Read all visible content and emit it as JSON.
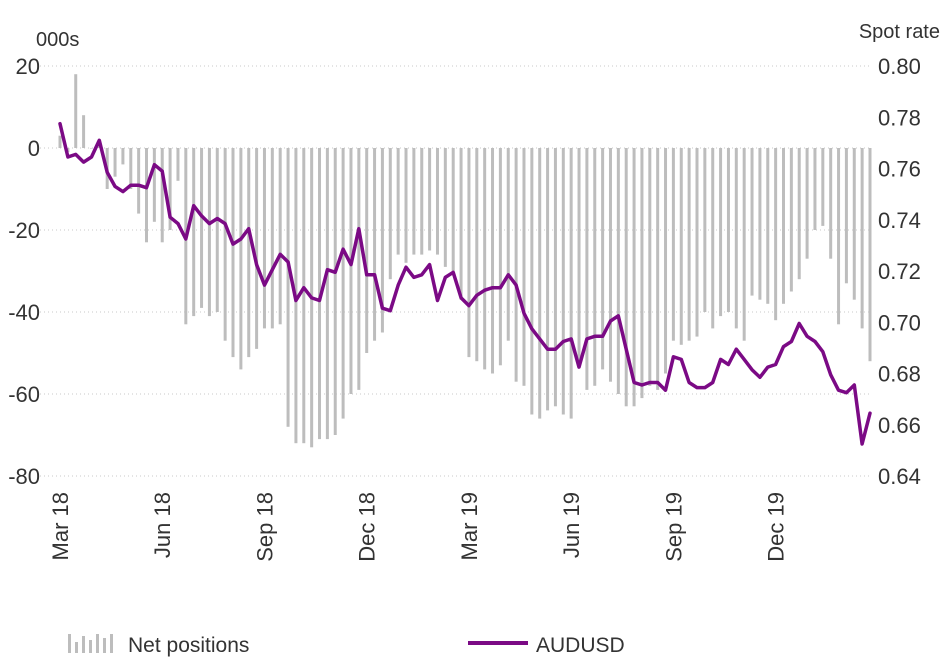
{
  "chart_data": {
    "type": "bar+line",
    "left_axis": {
      "unit": "000s",
      "ylim": [
        -80,
        20
      ],
      "ticks": [
        "20",
        "0",
        "-20",
        "-40",
        "-60",
        "-80"
      ]
    },
    "right_axis": {
      "unit": "Spot rate",
      "ylim": [
        0.64,
        0.8
      ],
      "ticks": [
        "0.80",
        "0.78",
        "0.76",
        "0.74",
        "0.72",
        "0.70",
        "0.68",
        "0.66",
        "0.64"
      ]
    },
    "x_ticks": [
      {
        "label": "Mar 18",
        "week": 0
      },
      {
        "label": "Jun 18",
        "week": 13
      },
      {
        "label": "Sep 18",
        "week": 26
      },
      {
        "label": "Dec 18",
        "week": 39
      },
      {
        "label": "Mar 19",
        "week": 52
      },
      {
        "label": "Jun 19",
        "week": 65
      },
      {
        "label": "Sep 19",
        "week": 78
      },
      {
        "label": "Dec 19",
        "week": 91
      }
    ],
    "grid": "horizontal dotted",
    "legend_position": "bottom",
    "series": [
      {
        "name": "Net positions",
        "type": "bar",
        "axis": "left",
        "color": "#bdbdbd",
        "values": [
          3,
          -1,
          18,
          8,
          0,
          2,
          -10,
          -7,
          -4,
          -10,
          -16,
          -23,
          -18,
          -23,
          -20,
          -8,
          -43,
          -41,
          -39,
          -41,
          -40,
          -47,
          -51,
          -54,
          -51,
          -49,
          -44,
          -44,
          -43,
          -68,
          -72,
          -72,
          -73,
          -71,
          -71,
          -70,
          -66,
          -60,
          -59,
          -50,
          -47,
          -45,
          -32,
          -26,
          -28,
          -26,
          -26,
          -25,
          -26,
          -29,
          -30,
          -37,
          -51,
          -52,
          -54,
          -55,
          -53,
          -47,
          -57,
          -58,
          -65,
          -66,
          -64,
          -63,
          -65,
          -66,
          -53,
          -59,
          -58,
          -54,
          -57,
          -60,
          -63,
          -63,
          -61,
          -58,
          -59,
          -55,
          -47,
          -48,
          -47,
          -46,
          -40,
          -44,
          -41,
          -40,
          -44,
          -47,
          -36,
          -37,
          -38,
          -42,
          -38,
          -35,
          -32,
          -27,
          -20,
          -19,
          -27,
          -43,
          -33,
          -37,
          -44,
          -52
        ]
      },
      {
        "name": "AUDUSD",
        "type": "line",
        "axis": "right",
        "color": "#7b0a85",
        "values": [
          0.7775,
          0.7645,
          0.7655,
          0.7625,
          0.7645,
          0.771,
          0.7585,
          0.753,
          0.751,
          0.7535,
          0.7535,
          0.7525,
          0.7615,
          0.759,
          0.741,
          0.7385,
          0.7325,
          0.7455,
          0.7415,
          0.7385,
          0.7405,
          0.7385,
          0.7305,
          0.7325,
          0.7365,
          0.7225,
          0.7145,
          0.7205,
          0.7265,
          0.7235,
          0.7085,
          0.7135,
          0.7095,
          0.7085,
          0.7205,
          0.7195,
          0.7285,
          0.7225,
          0.7365,
          0.7185,
          0.7185,
          0.7055,
          0.7045,
          0.7145,
          0.7215,
          0.7175,
          0.7185,
          0.7225,
          0.7085,
          0.7175,
          0.7195,
          0.7095,
          0.7065,
          0.7105,
          0.7125,
          0.7135,
          0.7135,
          0.7185,
          0.7145,
          0.7035,
          0.6975,
          0.6935,
          0.6895,
          0.6895,
          0.6925,
          0.6935,
          0.6825,
          0.6935,
          0.6945,
          0.6945,
          0.7005,
          0.7025,
          0.6895,
          0.6765,
          0.6755,
          0.6765,
          0.6765,
          0.6735,
          0.6865,
          0.6855,
          0.6765,
          0.6745,
          0.6745,
          0.6765,
          0.6855,
          0.6835,
          0.6895,
          0.6855,
          0.6815,
          0.6785,
          0.6825,
          0.6835,
          0.6905,
          0.6925,
          0.6995,
          0.6945,
          0.6925,
          0.6885,
          0.6795,
          0.6735,
          0.6725,
          0.6755,
          0.6525,
          0.6645
        ]
      }
    ]
  }
}
